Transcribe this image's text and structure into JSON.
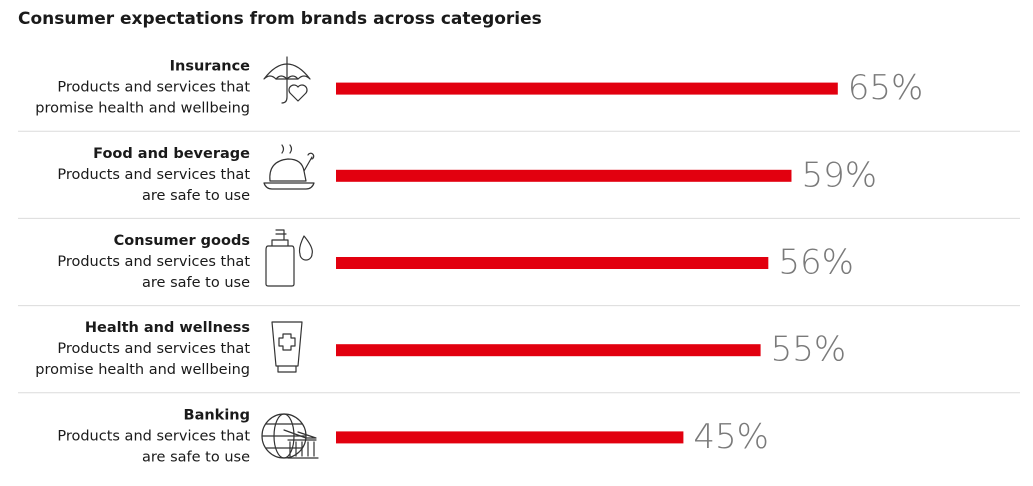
{
  "chart_data": {
    "type": "bar",
    "orientation": "horizontal",
    "title": "Consumer expectations from brands across categories",
    "categories": [
      "Insurance",
      "Food and beverage",
      "Consumer goods",
      "Health and wellness",
      "Banking"
    ],
    "descriptions": [
      [
        "Products and services that",
        "promise health and wellbeing"
      ],
      [
        "Products and services that",
        "are safe to use"
      ],
      [
        "Products and services that",
        "are safe to use"
      ],
      [
        "Products and services that",
        "promise health and wellbeing"
      ],
      [
        "Products and services that",
        "are safe to use"
      ]
    ],
    "values": [
      65,
      59,
      56,
      55,
      45
    ],
    "value_labels": [
      "65%",
      "59%",
      "56%",
      "55%",
      "45%"
    ],
    "color": "#e2000f"
  }
}
